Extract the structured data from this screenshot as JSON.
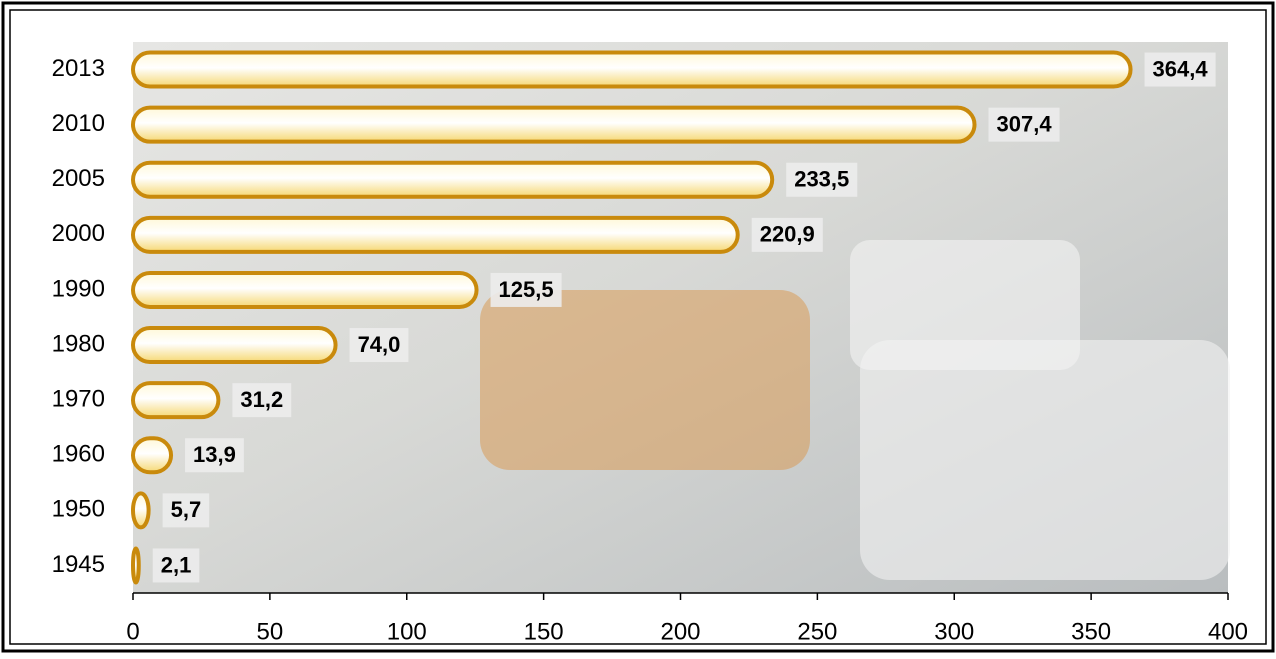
{
  "chart_data": {
    "type": "hbar",
    "categories": [
      "1945",
      "1950",
      "1960",
      "1970",
      "1980",
      "1990",
      "2000",
      "2005",
      "2010",
      "2013"
    ],
    "values": [
      2.1,
      5.7,
      13.9,
      31.2,
      74.0,
      125.5,
      220.9,
      233.5,
      307.4,
      364.4
    ],
    "value_labels": [
      "2,1",
      "5,7",
      "13,9",
      "31,2",
      "74,0",
      "125,5",
      "220,9",
      "233,5",
      "307,4",
      "364,4"
    ],
    "color": "#c98a0c",
    "xlim": [
      0,
      400
    ],
    "xticks": [
      0,
      50,
      100,
      150,
      200,
      250,
      300,
      350,
      400
    ],
    "grid": false
  }
}
